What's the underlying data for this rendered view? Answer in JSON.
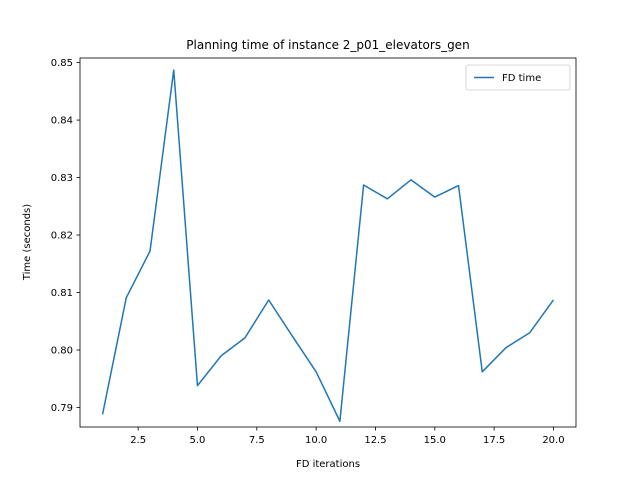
{
  "chart_data": {
    "type": "line",
    "title": "Planning time of instance 2_p01_elevators_gen",
    "xlabel": "FD iterations",
    "ylabel": "Time (seconds)",
    "xlim": [
      0.05,
      20.95
    ],
    "ylim": [
      0.7866,
      0.8508
    ],
    "xticks": [
      2.5,
      5.0,
      7.5,
      10.0,
      12.5,
      15.0,
      17.5,
      20.0
    ],
    "xtick_labels": [
      "2.5",
      "5.0",
      "7.5",
      "10.0",
      "12.5",
      "15.0",
      "17.5",
      "20.0"
    ],
    "yticks": [
      0.79,
      0.8,
      0.81,
      0.82,
      0.83,
      0.84,
      0.85
    ],
    "ytick_labels": [
      "0.79",
      "0.80",
      "0.81",
      "0.82",
      "0.83",
      "0.84",
      "0.85"
    ],
    "grid": false,
    "legend_position": "upper right",
    "series": [
      {
        "name": "FD time",
        "color": "#1f77b4",
        "x": [
          1,
          2,
          3,
          4,
          5,
          6,
          7,
          8,
          9,
          10,
          11,
          12,
          13,
          14,
          15,
          16,
          17,
          18,
          19,
          20
        ],
        "y": [
          0.7888,
          0.8091,
          0.8172,
          0.8487,
          0.7938,
          0.799,
          0.8021,
          0.8087,
          0.8024,
          0.7962,
          0.7876,
          0.8287,
          0.8263,
          0.8296,
          0.8266,
          0.8286,
          0.7962,
          0.8004,
          0.803,
          0.8087
        ]
      }
    ]
  }
}
